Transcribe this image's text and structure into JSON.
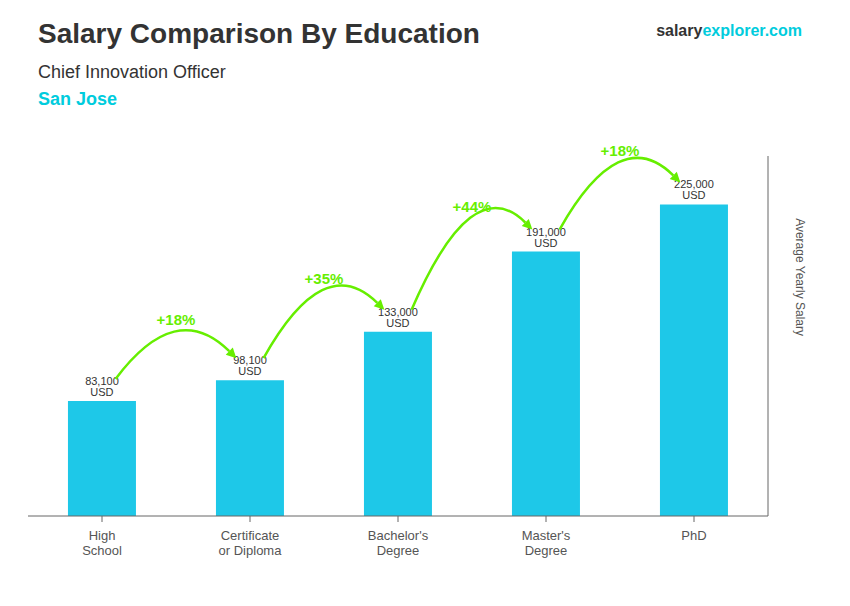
{
  "chart_data": {
    "type": "bar",
    "title": "Salary Comparison By Education",
    "subtitle": "Chief Innovation Officer",
    "annotations": [
      {
        "text": "San Jose",
        "color": "#00ccdd"
      },
      {
        "text": "salary"
      },
      {
        "text": "explorer.com",
        "color": "#00ccdd"
      }
    ],
    "categories": [
      "High\nSchool",
      "Certificate\nor Diploma",
      "Bachelor's\nDegree",
      "Master's\nDegree",
      "PhD"
    ],
    "values": [
      83100,
      98100,
      133000,
      191000,
      225000
    ],
    "value_labels": [
      "83,100 USD",
      "98,100 USD",
      "133,000 USD",
      "191,000 USD",
      "225,000 USD"
    ],
    "change_labels": [
      "+18%",
      "+35%",
      "+44%",
      "+18%"
    ],
    "change_color": "#66ee00",
    "color": "#1ec8e8",
    "ylabel": "Average Yearly Salary",
    "ylim": [
      0,
      260000
    ],
    "grid": false,
    "data_labels": true,
    "tick_labels": "x"
  }
}
